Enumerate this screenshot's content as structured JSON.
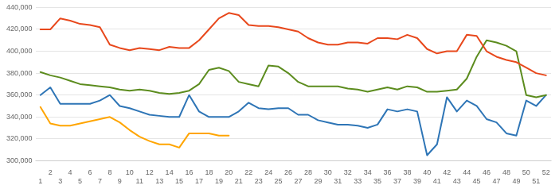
{
  "chart_data": {
    "type": "line",
    "x": [
      1,
      2,
      3,
      4,
      5,
      6,
      7,
      8,
      9,
      10,
      11,
      12,
      13,
      14,
      15,
      16,
      17,
      18,
      19,
      20,
      21,
      22,
      23,
      24,
      25,
      26,
      27,
      28,
      29,
      30,
      31,
      32,
      33,
      34,
      35,
      36,
      37,
      38,
      39,
      40,
      41,
      42,
      43,
      44,
      45,
      46,
      47,
      48,
      49,
      50,
      51,
      52
    ],
    "series": [
      {
        "color": "#E8481C",
        "values": [
          420000,
          420000,
          430000,
          428000,
          425000,
          424000,
          422000,
          406000,
          403000,
          401000,
          403000,
          402000,
          401000,
          404000,
          403000,
          403000,
          410000,
          420000,
          430000,
          435000,
          433000,
          424000,
          423000,
          423000,
          422000,
          420000,
          418000,
          412000,
          408000,
          406000,
          406000,
          408000,
          408000,
          407000,
          412000,
          412000,
          411000,
          415000,
          412000,
          402000,
          398000,
          400000,
          400000,
          415000,
          414000,
          400000,
          395000,
          392000,
          390000,
          385000,
          380000,
          378000
        ]
      },
      {
        "color": "#5C8C1E",
        "values": [
          381000,
          378000,
          376000,
          373000,
          370000,
          369000,
          368000,
          367000,
          365000,
          364000,
          365000,
          364000,
          362000,
          361000,
          362000,
          364000,
          370000,
          383000,
          385000,
          382000,
          372000,
          370000,
          368000,
          387000,
          386000,
          380000,
          372000,
          368000,
          368000,
          368000,
          368000,
          366000,
          365000,
          363000,
          365000,
          367000,
          365000,
          368000,
          367000,
          363000,
          363000,
          364000,
          365000,
          375000,
          395000,
          410000,
          408000,
          405000,
          400000,
          360000,
          358000,
          360000
        ]
      },
      {
        "color": "#2E75B6",
        "values": [
          360000,
          367000,
          352000,
          352000,
          352000,
          352000,
          355000,
          360000,
          350000,
          348000,
          345000,
          342000,
          341000,
          340000,
          340000,
          360000,
          345000,
          340000,
          340000,
          340000,
          345000,
          353000,
          348000,
          347000,
          348000,
          348000,
          342000,
          342000,
          337000,
          335000,
          333000,
          333000,
          332000,
          330000,
          333000,
          347000,
          345000,
          347000,
          345000,
          305000,
          315000,
          358000,
          345000,
          355000,
          350000,
          338000,
          335000,
          325000,
          323000,
          355000,
          350000,
          360000
        ]
      },
      {
        "color": "#FFA500",
        "values": [
          349000,
          334000,
          332000,
          332000,
          334000,
          336000,
          338000,
          340000,
          335000,
          328000,
          322000,
          318000,
          315000,
          315000,
          312000,
          325000,
          325000,
          325000,
          323000,
          323000,
          null,
          null,
          null,
          null,
          null,
          null,
          null,
          null,
          null,
          null,
          null,
          null,
          null,
          null,
          null,
          null,
          null,
          null,
          null,
          null,
          null,
          null,
          null,
          null,
          null,
          null,
          null,
          null,
          null,
          null,
          null,
          null
        ]
      }
    ],
    "xlim": [
      0.5,
      52.5
    ],
    "xticks": [
      1,
      2,
      3,
      4,
      5,
      6,
      7,
      8,
      9,
      10,
      11,
      12,
      13,
      14,
      15,
      16,
      17,
      18,
      19,
      20,
      21,
      22,
      23,
      24,
      25,
      26,
      27,
      28,
      29,
      30,
      31,
      32,
      33,
      34,
      35,
      36,
      37,
      38,
      39,
      40,
      41,
      42,
      43,
      44,
      45,
      46,
      47,
      48,
      49,
      50,
      51,
      52
    ],
    "ylim": [
      300000,
      440000
    ],
    "yticks": [
      {
        "value": 300000,
        "label": "300,000"
      },
      {
        "value": 320000,
        "label": "320,000"
      },
      {
        "value": 340000,
        "label": "340,000"
      },
      {
        "value": 360000,
        "label": "360,000"
      },
      {
        "value": 380000,
        "label": "380,000"
      },
      {
        "value": 400000,
        "label": "400,000"
      },
      {
        "value": 420000,
        "label": "420,000"
      },
      {
        "value": 440000,
        "label": "440,000"
      }
    ],
    "grid": "y"
  }
}
